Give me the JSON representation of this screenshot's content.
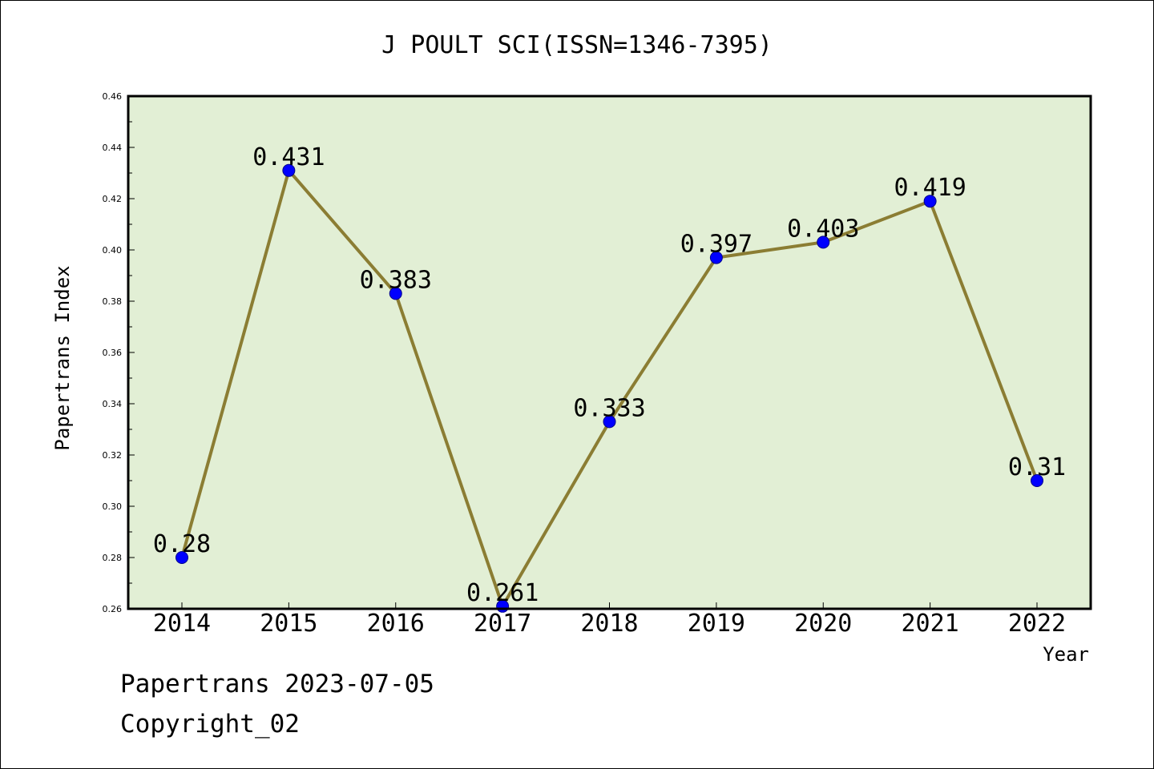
{
  "chart_data": {
    "type": "line",
    "title": "J POULT SCI(ISSN=1346-7395)",
    "xlabel": "Year",
    "ylabel": "Papertrans Index",
    "categories": [
      "2014",
      "2015",
      "2016",
      "2017",
      "2018",
      "2019",
      "2020",
      "2021",
      "2022"
    ],
    "series": [
      {
        "values": [
          0.28,
          0.431,
          0.383,
          0.261,
          0.333,
          0.397,
          0.403,
          0.419,
          0.31
        ],
        "labels": [
          "0.28",
          "0.431",
          "0.383",
          "0.261",
          "0.333",
          "0.397",
          "0.403",
          "0.419",
          "0.31"
        ]
      }
    ],
    "ylim": [
      0.26,
      0.46
    ],
    "yticks": [
      "0.26",
      "0.28",
      "0.30",
      "0.32",
      "0.34",
      "0.36",
      "0.38",
      "0.40",
      "0.42",
      "0.44",
      "0.46"
    ],
    "grid": false,
    "colors": {
      "plot_background": "#e2efd5",
      "line": "#8b7d33",
      "marker": "#0000ff",
      "frame": "#000000"
    }
  },
  "footer": {
    "line1": "Papertrans 2023-07-05",
    "line2": "Copyright_02"
  }
}
